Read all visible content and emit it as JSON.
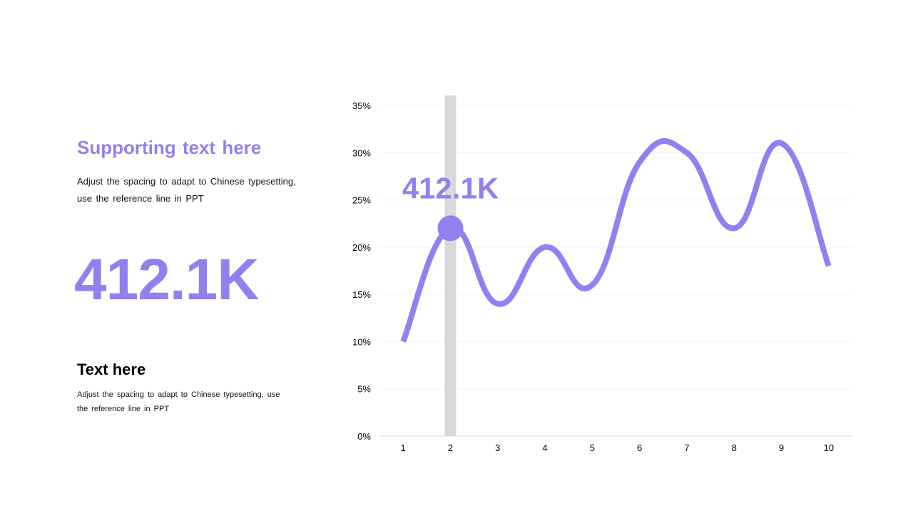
{
  "left": {
    "supporting_title": "Supporting text here",
    "supporting_body": "Adjust the spacing to adapt to Chinese typesetting, use the reference line in PPT",
    "big_number": "412.1K",
    "text_title": "Text here",
    "text_body": "Adjust the spacing to adapt to Chinese typesetting, use the reference line in PPT"
  },
  "colors": {
    "accent": "#9380f0",
    "highlight_bar": "#d9d9d9",
    "gridline": "#f2f2f2",
    "axis_line": "#d9d9d9",
    "text": "#000000"
  },
  "chart_data": {
    "type": "line",
    "categories": [
      "1",
      "2",
      "3",
      "4",
      "5",
      "6",
      "7",
      "8",
      "9",
      "10"
    ],
    "values": [
      10,
      22,
      14,
      20,
      16,
      29,
      30,
      22,
      31,
      18
    ],
    "y_ticks": [
      "0%",
      "5%",
      "10%",
      "15%",
      "20%",
      "25%",
      "30%",
      "35%"
    ],
    "ylim": [
      0,
      35
    ],
    "smooth": true,
    "grid": true,
    "highlight_index": 1,
    "highlight_label": "412.1K"
  }
}
